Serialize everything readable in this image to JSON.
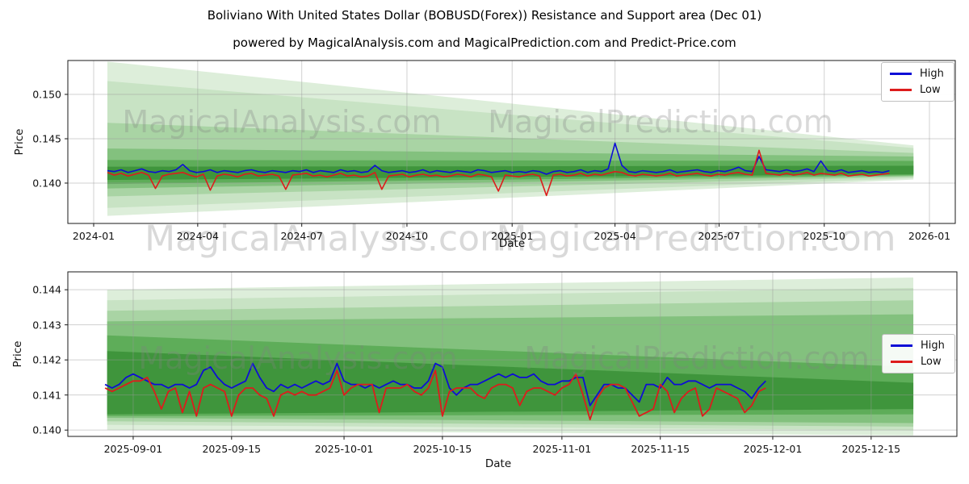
{
  "title": "Boliviano With United States Dollar (BOBUSD(Forex)) Resistance and Support area (Dec 01)",
  "subtitle": "powered by MagicalAnalysis.com and MagicalPrediction.com and Predict-Price.com",
  "watermarks": {
    "left": "MagicalAnalysis.com",
    "right": "MagicalPrediction.com"
  },
  "legend": {
    "high_label": "High",
    "low_label": "Low"
  },
  "colors": {
    "high": "#0d0dd6",
    "low": "#dd1c1c",
    "grid": "#9a9a9a",
    "spine": "#1a1a1a",
    "band_shades": [
      "#ddeeda",
      "#c8e3c4",
      "#a9d4a4",
      "#83c17e",
      "#5ead59",
      "#3f953c"
    ]
  },
  "chart_data": [
    {
      "type": "line",
      "xlabel": "Date",
      "ylabel": "Price",
      "x_range_days": [
        -22.6,
        753.6
      ],
      "y_range": [
        0.13545,
        0.15382
      ],
      "x_ticks": [
        {
          "day": 0,
          "label": "2024-01"
        },
        {
          "day": 91,
          "label": "2024-04"
        },
        {
          "day": 182,
          "label": "2024-07"
        },
        {
          "day": 274,
          "label": "2024-10"
        },
        {
          "day": 366,
          "label": "2025-01"
        },
        {
          "day": 456,
          "label": "2025-04"
        },
        {
          "day": 547,
          "label": "2025-07"
        },
        {
          "day": 639,
          "label": "2025-10"
        },
        {
          "day": 731,
          "label": "2026-01"
        }
      ],
      "y_ticks": [
        {
          "v": 0.14,
          "label": "0.140"
        },
        {
          "v": 0.145,
          "label": "0.145"
        },
        {
          "v": 0.15,
          "label": "0.150"
        }
      ],
      "bands": [
        {
          "x0": 12,
          "x1": 717,
          "top0": 0.1537,
          "top1": 0.14425,
          "bot0": 0.1363,
          "bot1": 0.1404,
          "shade": 0
        },
        {
          "x0": 12,
          "x1": 717,
          "top0": 0.1515,
          "top1": 0.14395,
          "bot0": 0.1372,
          "bot1": 0.14055,
          "shade": 1
        },
        {
          "x0": 12,
          "x1": 717,
          "top0": 0.1468,
          "top1": 0.1434,
          "bot0": 0.1385,
          "bot1": 0.1407,
          "shade": 2
        },
        {
          "x0": 12,
          "x1": 717,
          "top0": 0.1439,
          "top1": 0.143,
          "bot0": 0.1394,
          "bot1": 0.1408,
          "shade": 3
        },
        {
          "x0": 12,
          "x1": 717,
          "top0": 0.1426,
          "top1": 0.1425,
          "bot0": 0.1399,
          "bot1": 0.1409,
          "shade": 4
        },
        {
          "x0": 12,
          "x1": 717,
          "top0": 0.14185,
          "top1": 0.14195,
          "bot0": 0.14035,
          "bot1": 0.141,
          "shade": 5
        }
      ],
      "series": [
        {
          "name": "High",
          "color_key": "high",
          "start_day": 12,
          "step_days": 6,
          "values": [
            0.1414,
            0.1413,
            0.1415,
            0.1412,
            0.1414,
            0.1416,
            0.1413,
            0.1412,
            0.1414,
            0.1413,
            0.1415,
            0.1421,
            0.1414,
            0.1412,
            0.1413,
            0.1415,
            0.1412,
            0.1414,
            0.1413,
            0.1412,
            0.1414,
            0.1415,
            0.1413,
            0.1412,
            0.1414,
            0.1413,
            0.1412,
            0.1414,
            0.1413,
            0.1415,
            0.1412,
            0.1414,
            0.1413,
            0.1412,
            0.1415,
            0.1413,
            0.1414,
            0.1412,
            0.1413,
            0.142,
            0.1414,
            0.1412,
            0.1413,
            0.1414,
            0.1412,
            0.1413,
            0.1415,
            0.1412,
            0.1414,
            0.1413,
            0.1412,
            0.1414,
            0.1413,
            0.1412,
            0.1415,
            0.1414,
            0.1412,
            0.1413,
            0.1414,
            0.1412,
            0.1413,
            0.1412,
            0.1414,
            0.1413,
            0.141,
            0.1413,
            0.1414,
            0.1412,
            0.1413,
            0.1415,
            0.1412,
            0.1414,
            0.1413,
            0.1416,
            0.1445,
            0.142,
            0.1413,
            0.1412,
            0.1414,
            0.1413,
            0.1412,
            0.1413,
            0.1415,
            0.1412,
            0.1413,
            0.1414,
            0.1415,
            0.1413,
            0.1412,
            0.1414,
            0.1413,
            0.1415,
            0.1418,
            0.1414,
            0.1413,
            0.143,
            0.1415,
            0.1414,
            0.1413,
            0.1415,
            0.1413,
            0.1414,
            0.1416,
            0.1413,
            0.1425,
            0.1414,
            0.1413,
            0.1415,
            0.1412,
            0.1413,
            0.1414,
            0.1412,
            0.1413,
            0.1412,
            0.1414
          ]
        },
        {
          "name": "Low",
          "color_key": "low",
          "start_day": 12,
          "step_days": 6,
          "values": [
            0.1412,
            0.1409,
            0.1411,
            0.1408,
            0.141,
            0.1412,
            0.1409,
            0.1394,
            0.1408,
            0.141,
            0.1411,
            0.1412,
            0.1409,
            0.1407,
            0.141,
            0.1392,
            0.1408,
            0.141,
            0.1409,
            0.1407,
            0.141,
            0.1411,
            0.1408,
            0.1409,
            0.141,
            0.1408,
            0.1393,
            0.1409,
            0.141,
            0.1411,
            0.1408,
            0.1409,
            0.1407,
            0.1409,
            0.1411,
            0.1408,
            0.1409,
            0.1407,
            0.1408,
            0.1412,
            0.1393,
            0.1408,
            0.1409,
            0.141,
            0.1407,
            0.1409,
            0.141,
            0.1408,
            0.1409,
            0.1407,
            0.1408,
            0.141,
            0.1409,
            0.1407,
            0.141,
            0.1409,
            0.1407,
            0.1391,
            0.1409,
            0.1408,
            0.1407,
            0.1409,
            0.141,
            0.1408,
            0.1386,
            0.1409,
            0.141,
            0.1408,
            0.1409,
            0.1411,
            0.1408,
            0.141,
            0.1409,
            0.1411,
            0.1413,
            0.1412,
            0.1409,
            0.1408,
            0.141,
            0.1409,
            0.1408,
            0.1409,
            0.1411,
            0.1408,
            0.1409,
            0.141,
            0.1411,
            0.1409,
            0.1408,
            0.141,
            0.1409,
            0.1411,
            0.1412,
            0.141,
            0.1409,
            0.1437,
            0.1411,
            0.141,
            0.1409,
            0.1411,
            0.1409,
            0.141,
            0.1412,
            0.1409,
            0.1411,
            0.141,
            0.1409,
            0.1411,
            0.1408,
            0.1409,
            0.141,
            0.1408,
            0.1409,
            0.141,
            0.1411
          ]
        }
      ]
    },
    {
      "type": "line",
      "xlabel": "Date",
      "ylabel": "Price",
      "x_range_days": [
        -9.3,
        117.2
      ],
      "y_range": [
        0.13982,
        0.14451
      ],
      "x_ticks": [
        {
          "day": 0,
          "label": "2025-09-01"
        },
        {
          "day": 14,
          "label": "2025-09-15"
        },
        {
          "day": 30,
          "label": "2025-10-01"
        },
        {
          "day": 44,
          "label": "2025-10-15"
        },
        {
          "day": 61,
          "label": "2025-11-01"
        },
        {
          "day": 75,
          "label": "2025-11-15"
        },
        {
          "day": 91,
          "label": "2025-12-01"
        },
        {
          "day": 105,
          "label": "2025-12-15"
        }
      ],
      "y_ticks": [
        {
          "v": 0.14,
          "label": "0.140"
        },
        {
          "v": 0.141,
          "label": "0.141"
        },
        {
          "v": 0.142,
          "label": "0.142"
        },
        {
          "v": 0.143,
          "label": "0.143"
        },
        {
          "v": 0.144,
          "label": "0.144"
        }
      ],
      "bands": [
        {
          "x0": -3.7,
          "x1": 111,
          "top0": 0.144,
          "top1": 0.14435,
          "bot0": 0.14,
          "bot1": 0.13985,
          "shade": 0
        },
        {
          "x0": -3.7,
          "x1": 111,
          "top0": 0.1437,
          "top1": 0.14405,
          "bot0": 0.14015,
          "bot1": 0.14,
          "shade": 1
        },
        {
          "x0": -3.7,
          "x1": 111,
          "top0": 0.1434,
          "top1": 0.1437,
          "bot0": 0.14025,
          "bot1": 0.1401,
          "shade": 2
        },
        {
          "x0": -3.7,
          "x1": 111,
          "top0": 0.1431,
          "top1": 0.1433,
          "bot0": 0.14035,
          "bot1": 0.1402,
          "shade": 3
        },
        {
          "x0": -3.7,
          "x1": 111,
          "top0": 0.1427,
          "top1": 0.1418,
          "bot0": 0.1404,
          "bot1": 0.14045,
          "shade": 4
        },
        {
          "x0": -3.7,
          "x1": 111,
          "top0": 0.14225,
          "top1": 0.14135,
          "bot0": 0.14045,
          "bot1": 0.1406,
          "shade": 5
        }
      ],
      "series": [
        {
          "name": "High",
          "color_key": "high",
          "start_day": -4,
          "step_days": 1,
          "values": [
            0.1413,
            0.1412,
            0.1413,
            0.1415,
            0.1416,
            0.1415,
            0.1414,
            0.1413,
            0.1413,
            0.1412,
            0.1413,
            0.1413,
            0.1412,
            0.1413,
            0.1417,
            0.1418,
            0.1415,
            0.1413,
            0.1412,
            0.1413,
            0.1414,
            0.1419,
            0.1415,
            0.1412,
            0.1411,
            0.1413,
            0.1412,
            0.1413,
            0.1412,
            0.1413,
            0.1414,
            0.1413,
            0.1414,
            0.1419,
            0.1414,
            0.1413,
            0.1413,
            0.1412,
            0.1413,
            0.1412,
            0.1413,
            0.1414,
            0.1413,
            0.1413,
            0.1412,
            0.1412,
            0.1414,
            0.1419,
            0.1418,
            0.1412,
            0.141,
            0.1412,
            0.1413,
            0.1413,
            0.1414,
            0.1415,
            0.1416,
            0.1415,
            0.1416,
            0.1415,
            0.1415,
            0.1416,
            0.1414,
            0.1413,
            0.1413,
            0.1414,
            0.1414,
            0.1415,
            0.1415,
            0.1407,
            0.141,
            0.1413,
            0.1413,
            0.1412,
            0.1412,
            0.141,
            0.1408,
            0.1413,
            0.1413,
            0.1412,
            0.1415,
            0.1413,
            0.1413,
            0.1414,
            0.1414,
            0.1413,
            0.1412,
            0.1413,
            0.1413,
            0.1413,
            0.1412,
            0.1411,
            0.1409,
            0.1412,
            0.1414
          ]
        },
        {
          "name": "Low",
          "color_key": "low",
          "start_day": -4,
          "step_days": 1,
          "values": [
            0.1412,
            0.1411,
            0.1412,
            0.1413,
            0.1414,
            0.1414,
            0.1415,
            0.1411,
            0.1406,
            0.1411,
            0.1412,
            0.1405,
            0.1411,
            0.1404,
            0.1412,
            0.1413,
            0.1412,
            0.1411,
            0.1404,
            0.141,
            0.1412,
            0.1412,
            0.141,
            0.1409,
            0.1404,
            0.141,
            0.1411,
            0.141,
            0.1411,
            0.141,
            0.141,
            0.1411,
            0.1412,
            0.1417,
            0.141,
            0.1412,
            0.1413,
            0.1413,
            0.1413,
            0.1405,
            0.1412,
            0.1412,
            0.1412,
            0.1413,
            0.1411,
            0.141,
            0.1412,
            0.1417,
            0.1404,
            0.1411,
            0.1412,
            0.1412,
            0.1412,
            0.141,
            0.1409,
            0.1412,
            0.1413,
            0.1413,
            0.1412,
            0.1407,
            0.1411,
            0.1412,
            0.1412,
            0.1411,
            0.141,
            0.1412,
            0.1413,
            0.1416,
            0.141,
            0.1403,
            0.1409,
            0.1412,
            0.1413,
            0.1413,
            0.1412,
            0.1408,
            0.1404,
            0.1405,
            0.1406,
            0.1413,
            0.1411,
            0.1405,
            0.1409,
            0.1411,
            0.1412,
            0.1404,
            0.1406,
            0.1412,
            0.1411,
            0.141,
            0.1409,
            0.1405,
            0.1407,
            0.1411,
            0.1412
          ]
        }
      ]
    }
  ]
}
